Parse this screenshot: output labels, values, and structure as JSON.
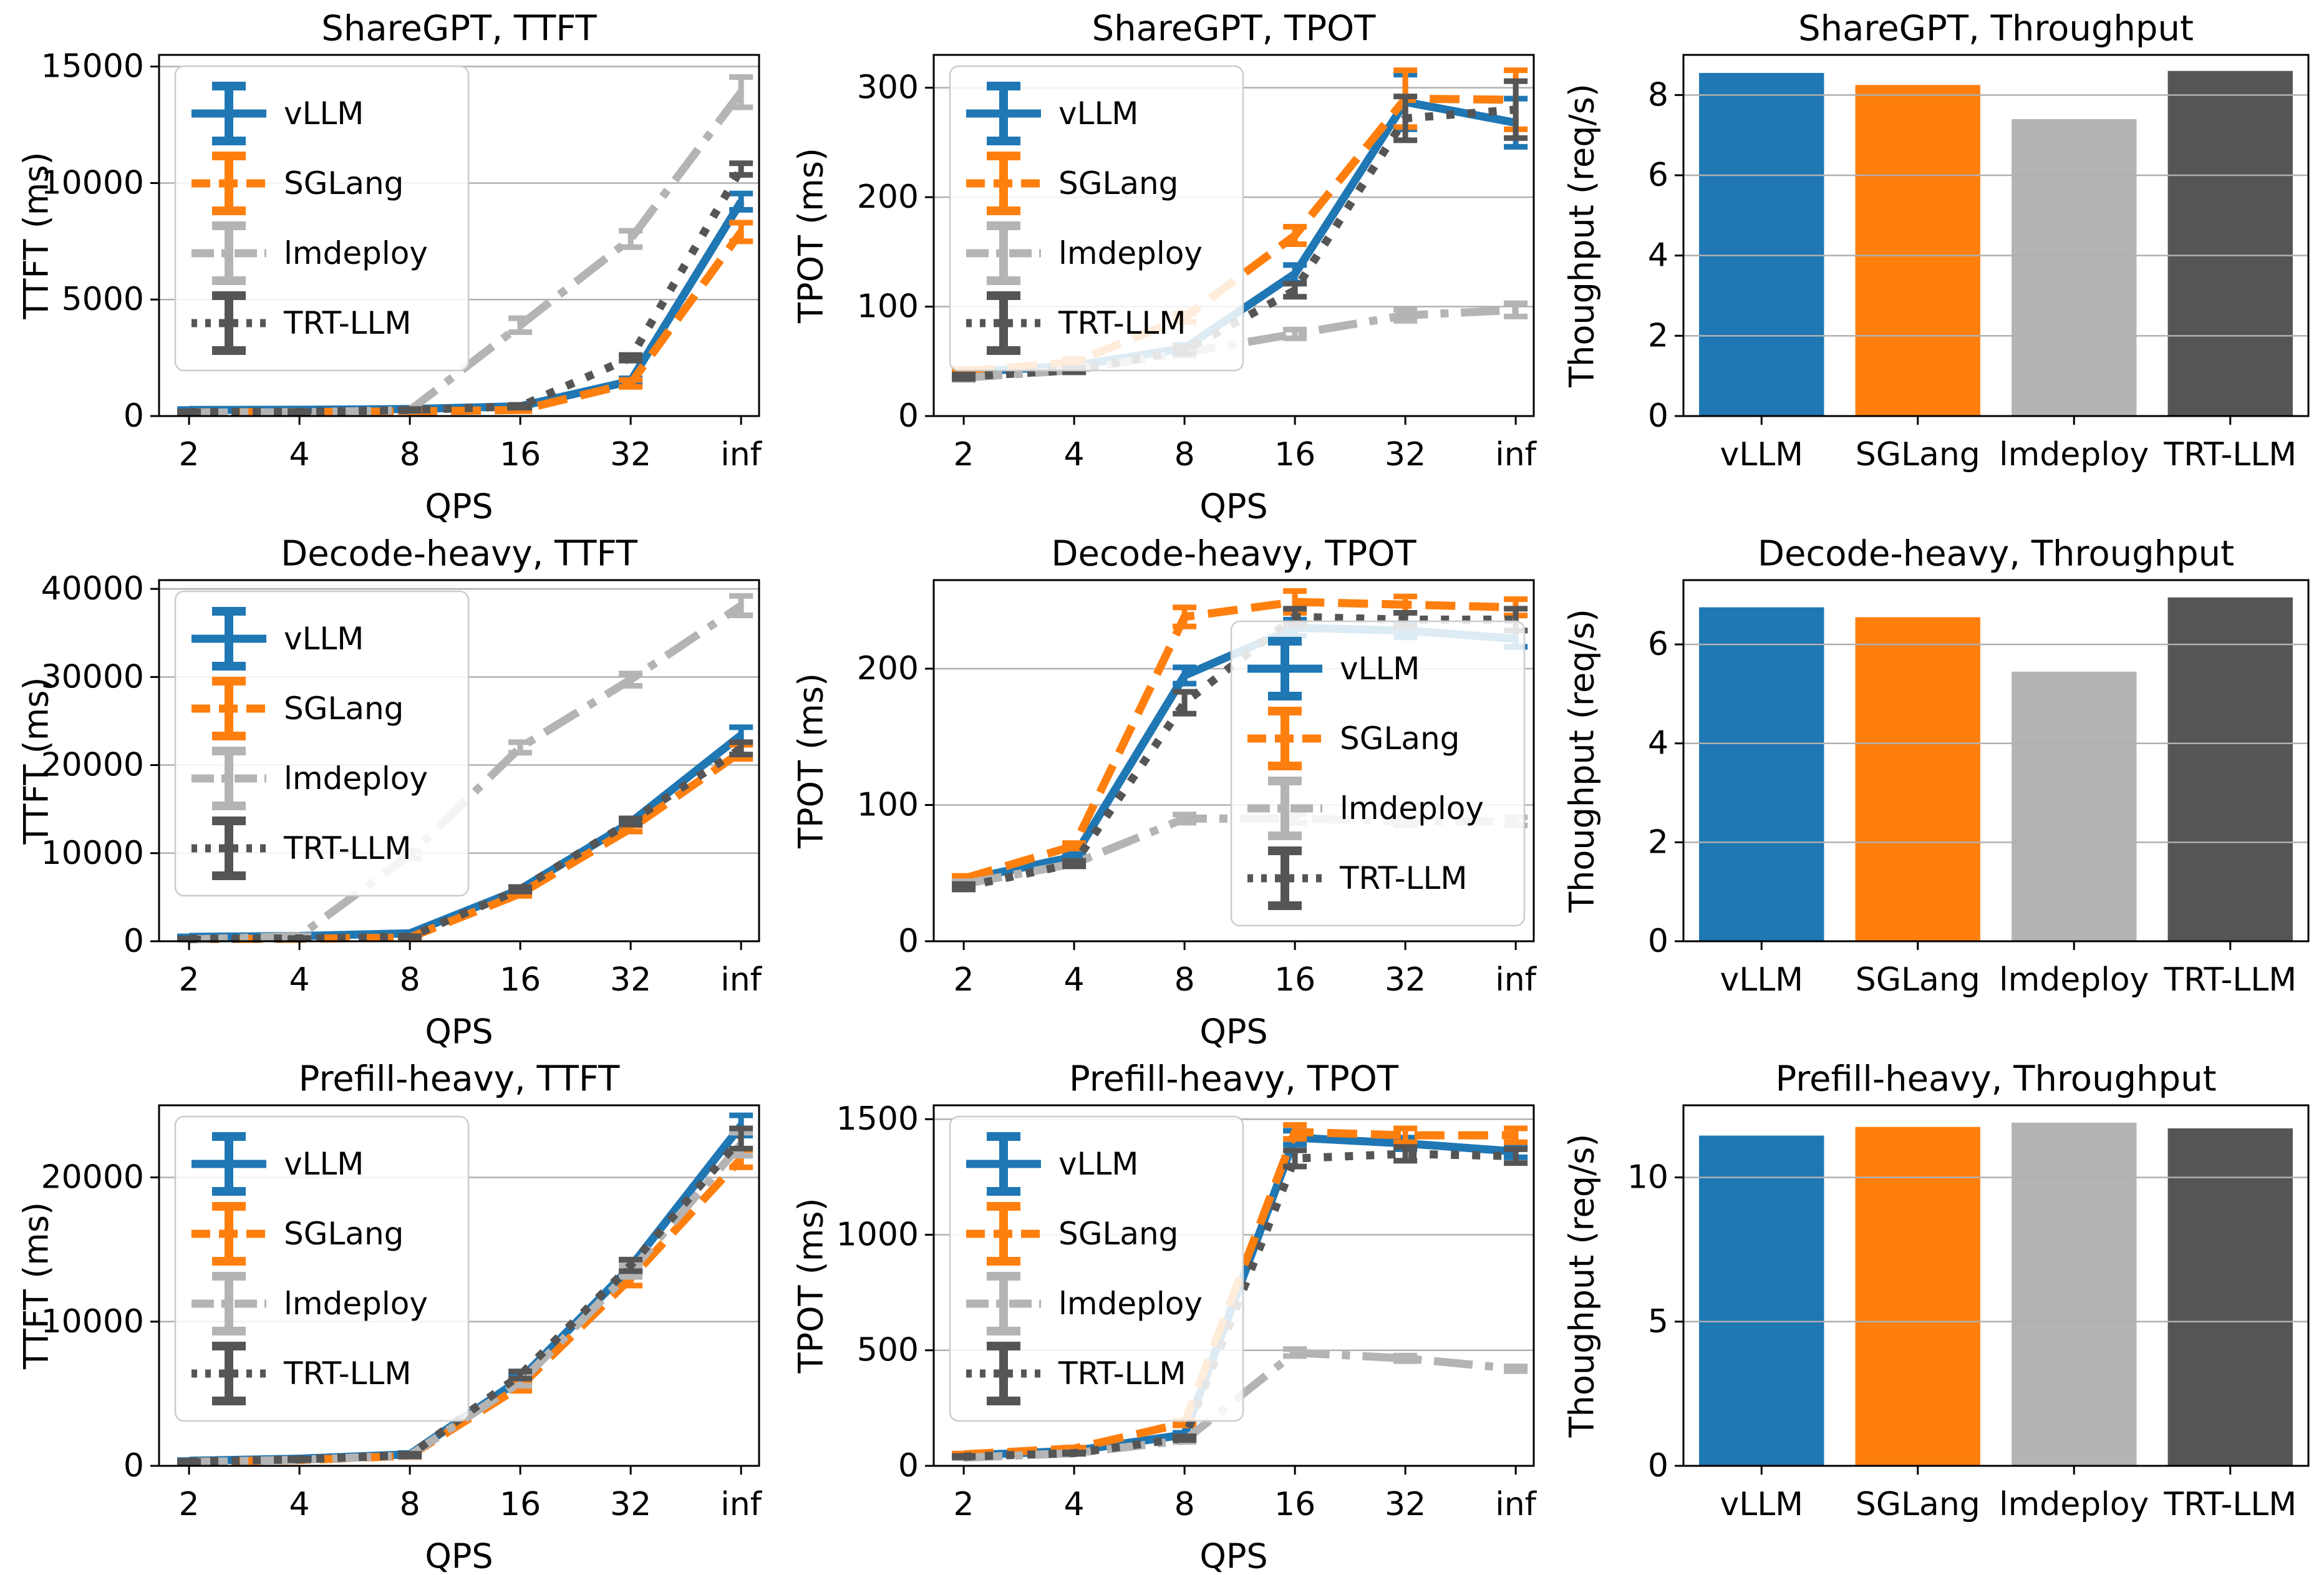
{
  "page": {
    "background": "#ffffff",
    "grid_color": "#b0b0b0",
    "axis_color": "#000000"
  },
  "frameworks": [
    "vLLM",
    "SGLang",
    "lmdeploy",
    "TRT-LLM"
  ],
  "colors": {
    "vllm": "#1f77b4",
    "sglang": "#ff7f0e",
    "lmdeploy": "#b4b4b4",
    "trtllm": "#555555"
  },
  "chart_data": [
    {
      "type": "line",
      "slug": "sharegpt-ttft",
      "title": "ShareGPT, TTFT",
      "xlabel": "QPS",
      "ylabel": "TTFT (ms)",
      "x": [
        "2",
        "4",
        "8",
        "16",
        "32",
        "inf"
      ],
      "ylim": [
        0,
        15500
      ],
      "yticks": [
        0,
        5000,
        10000,
        15000
      ],
      "grid": "horizontal",
      "legend": "upper-left",
      "series": [
        {
          "name": "vLLM",
          "color": "#1f77b4",
          "style": "solid",
          "values": [
            260,
            270,
            300,
            420,
            1500,
            9200
          ],
          "err": [
            40,
            40,
            40,
            60,
            120,
            350
          ]
        },
        {
          "name": "SGLang",
          "color": "#ff7f0e",
          "style": "dashed",
          "values": [
            160,
            170,
            200,
            260,
            1400,
            7900
          ],
          "err": [
            30,
            30,
            30,
            50,
            150,
            400
          ]
        },
        {
          "name": "lmdeploy",
          "color": "#b4b4b4",
          "style": "dashdot",
          "values": [
            150,
            160,
            250,
            3900,
            7600,
            13900
          ],
          "err": [
            30,
            30,
            40,
            300,
            350,
            650
          ]
        },
        {
          "name": "TRT-LLM",
          "color": "#555555",
          "style": "dotted",
          "values": [
            170,
            180,
            260,
            420,
            2500,
            10600
          ],
          "err": [
            30,
            30,
            40,
            60,
            120,
            250
          ]
        }
      ]
    },
    {
      "type": "line",
      "slug": "sharegpt-tpot",
      "title": "ShareGPT, TPOT",
      "xlabel": "QPS",
      "ylabel": "TPOT (ms)",
      "x": [
        "2",
        "4",
        "8",
        "16",
        "32",
        "inf"
      ],
      "ylim": [
        0,
        330
      ],
      "yticks": [
        0,
        100,
        200,
        300
      ],
      "grid": "horizontal",
      "legend": "upper-left",
      "series": [
        {
          "name": "vLLM",
          "color": "#1f77b4",
          "style": "solid",
          "values": [
            40,
            46,
            62,
            130,
            287,
            268
          ],
          "err": [
            2,
            2,
            3,
            8,
            25,
            22
          ]
        },
        {
          "name": "SGLang",
          "color": "#ff7f0e",
          "style": "dashed",
          "values": [
            41,
            49,
            90,
            165,
            290,
            289
          ],
          "err": [
            2,
            3,
            4,
            8,
            26,
            27
          ]
        },
        {
          "name": "lmdeploy",
          "color": "#b4b4b4",
          "style": "dashdot",
          "values": [
            35,
            42,
            58,
            75,
            92,
            97
          ],
          "err": [
            2,
            2,
            3,
            4,
            5,
            6
          ]
        },
        {
          "name": "TRT-LLM",
          "color": "#555555",
          "style": "dotted",
          "values": [
            36,
            42,
            60,
            115,
            272,
            280
          ],
          "err": [
            2,
            2,
            3,
            6,
            20,
            26
          ]
        }
      ]
    },
    {
      "type": "bar",
      "slug": "sharegpt-throughput",
      "title": "ShareGPT, Throughput",
      "ylabel": "Thoughput (req/s)",
      "categories": [
        "vLLM",
        "SGLang",
        "lmdeploy",
        "TRT-LLM"
      ],
      "values": [
        8.55,
        8.25,
        7.4,
        8.6
      ],
      "colors": [
        "#1f77b4",
        "#ff7f0e",
        "#b4b4b4",
        "#555555"
      ],
      "ylim": [
        0,
        9
      ],
      "yticks": [
        0,
        2,
        4,
        6,
        8
      ],
      "grid": "horizontal"
    },
    {
      "type": "line",
      "slug": "decode-heavy-ttft",
      "title": "Decode-heavy, TTFT",
      "xlabel": "QPS",
      "ylabel": "TTFT (ms)",
      "x": [
        "2",
        "4",
        "8",
        "16",
        "32",
        "inf"
      ],
      "ylim": [
        0,
        41000
      ],
      "yticks": [
        0,
        10000,
        20000,
        30000,
        40000
      ],
      "grid": "horizontal",
      "legend": "upper-left",
      "series": [
        {
          "name": "vLLM",
          "color": "#1f77b4",
          "style": "solid",
          "values": [
            500,
            600,
            900,
            5900,
            13500,
            23400
          ],
          "err": [
            60,
            60,
            100,
            250,
            350,
            900
          ]
        },
        {
          "name": "SGLang",
          "color": "#ff7f0e",
          "style": "dashed",
          "values": [
            250,
            280,
            420,
            5400,
            12800,
            21500
          ],
          "err": [
            40,
            40,
            60,
            250,
            350,
            800
          ]
        },
        {
          "name": "lmdeploy",
          "color": "#b4b4b4",
          "style": "dashdot",
          "values": [
            200,
            600,
            9800,
            22000,
            29700,
            38100
          ],
          "err": [
            40,
            80,
            400,
            600,
            700,
            1100
          ]
        },
        {
          "name": "TRT-LLM",
          "color": "#555555",
          "style": "dotted",
          "values": [
            280,
            320,
            520,
            5900,
            13600,
            21900
          ],
          "err": [
            40,
            40,
            60,
            250,
            350,
            700
          ]
        }
      ]
    },
    {
      "type": "line",
      "slug": "decode-heavy-tpot",
      "title": "Decode-heavy, TPOT",
      "xlabel": "QPS",
      "ylabel": "TPOT (ms)",
      "x": [
        "2",
        "4",
        "8",
        "16",
        "32",
        "inf"
      ],
      "ylim": [
        0,
        265
      ],
      "yticks": [
        0,
        100,
        200
      ],
      "grid": "horizontal",
      "legend": "lower-right",
      "series": [
        {
          "name": "vLLM",
          "color": "#1f77b4",
          "style": "solid",
          "values": [
            45,
            62,
            195,
            230,
            228,
            222
          ],
          "err": [
            2,
            2,
            6,
            6,
            5,
            6
          ]
        },
        {
          "name": "SGLang",
          "color": "#ff7f0e",
          "style": "dashed",
          "values": [
            46,
            70,
            238,
            249,
            247,
            245
          ],
          "err": [
            2,
            2,
            7,
            8,
            6,
            6
          ]
        },
        {
          "name": "lmdeploy",
          "color": "#b4b4b4",
          "style": "dashdot",
          "values": [
            42,
            57,
            90,
            90,
            88,
            88
          ],
          "err": [
            2,
            2,
            3,
            3,
            3,
            3
          ]
        },
        {
          "name": "TRT-LLM",
          "color": "#555555",
          "style": "dotted",
          "values": [
            40,
            57,
            175,
            238,
            236,
            236
          ],
          "err": [
            2,
            2,
            8,
            6,
            5,
            8
          ]
        }
      ]
    },
    {
      "type": "bar",
      "slug": "decode-heavy-throughput",
      "title": "Decode-heavy, Throughput",
      "ylabel": "Thoughput (req/s)",
      "categories": [
        "vLLM",
        "SGLang",
        "lmdeploy",
        "TRT-LLM"
      ],
      "values": [
        6.75,
        6.55,
        5.45,
        6.95
      ],
      "colors": [
        "#1f77b4",
        "#ff7f0e",
        "#b4b4b4",
        "#555555"
      ],
      "ylim": [
        0,
        7.3
      ],
      "yticks": [
        0,
        2,
        4,
        6
      ],
      "grid": "horizontal"
    },
    {
      "type": "line",
      "slug": "prefill-heavy-ttft",
      "title": "Prefill-heavy, TTFT",
      "xlabel": "QPS",
      "ylabel": "TTFT (ms)",
      "x": [
        "2",
        "4",
        "8",
        "16",
        "32",
        "inf"
      ],
      "ylim": [
        0,
        25000
      ],
      "yticks": [
        0,
        10000,
        20000
      ],
      "grid": "horizontal",
      "legend": "upper-left",
      "series": [
        {
          "name": "vLLM",
          "color": "#1f77b4",
          "style": "solid",
          "values": [
            350,
            500,
            800,
            6000,
            13800,
            23600
          ],
          "err": [
            50,
            60,
            90,
            250,
            400,
            700
          ]
        },
        {
          "name": "SGLang",
          "color": "#ff7f0e",
          "style": "dashed",
          "values": [
            280,
            400,
            700,
            5500,
            13000,
            21300
          ],
          "err": [
            40,
            60,
            90,
            300,
            500,
            600
          ]
        },
        {
          "name": "lmdeploy",
          "color": "#b4b4b4",
          "style": "dashdot",
          "values": [
            260,
            420,
            720,
            5800,
            13500,
            22300
          ],
          "err": [
            40,
            60,
            90,
            250,
            400,
            800
          ]
        },
        {
          "name": "TRT-LLM",
          "color": "#555555",
          "style": "dotted",
          "values": [
            300,
            450,
            750,
            6300,
            13900,
            22700
          ],
          "err": [
            40,
            60,
            90,
            250,
            400,
            700
          ]
        }
      ]
    },
    {
      "type": "line",
      "slug": "prefill-heavy-tpot",
      "title": "Prefill-heavy, TPOT",
      "xlabel": "QPS",
      "ylabel": "TPOT (ms)",
      "x": [
        "2",
        "4",
        "8",
        "16",
        "32",
        "inf"
      ],
      "ylim": [
        0,
        1560
      ],
      "yticks": [
        0,
        500,
        1000,
        1500
      ],
      "grid": "horizontal",
      "legend": "upper-left",
      "series": [
        {
          "name": "vLLM",
          "color": "#1f77b4",
          "style": "solid",
          "values": [
            45,
            65,
            135,
            1420,
            1395,
            1360
          ],
          "err": [
            3,
            3,
            8,
            30,
            25,
            25
          ]
        },
        {
          "name": "SGLang",
          "color": "#ff7f0e",
          "style": "dashed",
          "values": [
            50,
            75,
            185,
            1445,
            1430,
            1430
          ],
          "err": [
            3,
            4,
            10,
            30,
            30,
            30
          ]
        },
        {
          "name": "lmdeploy",
          "color": "#b4b4b4",
          "style": "dashdot",
          "values": [
            35,
            55,
            110,
            490,
            465,
            420
          ],
          "err": [
            2,
            3,
            6,
            15,
            12,
            10
          ]
        },
        {
          "name": "TRT-LLM",
          "color": "#555555",
          "style": "dotted",
          "values": [
            40,
            55,
            120,
            1330,
            1350,
            1340
          ],
          "err": [
            3,
            3,
            8,
            35,
            30,
            30
          ]
        }
      ]
    },
    {
      "type": "bar",
      "slug": "prefill-heavy-throughput",
      "title": "Prefill-heavy, Throughput",
      "ylabel": "Thoughput (req/s)",
      "categories": [
        "vLLM",
        "SGLang",
        "lmdeploy",
        "TRT-LLM"
      ],
      "values": [
        11.45,
        11.75,
        11.9,
        11.7
      ],
      "colors": [
        "#1f77b4",
        "#ff7f0e",
        "#b4b4b4",
        "#555555"
      ],
      "ylim": [
        0,
        12.5
      ],
      "yticks": [
        0,
        5,
        10
      ],
      "grid": "horizontal"
    }
  ]
}
